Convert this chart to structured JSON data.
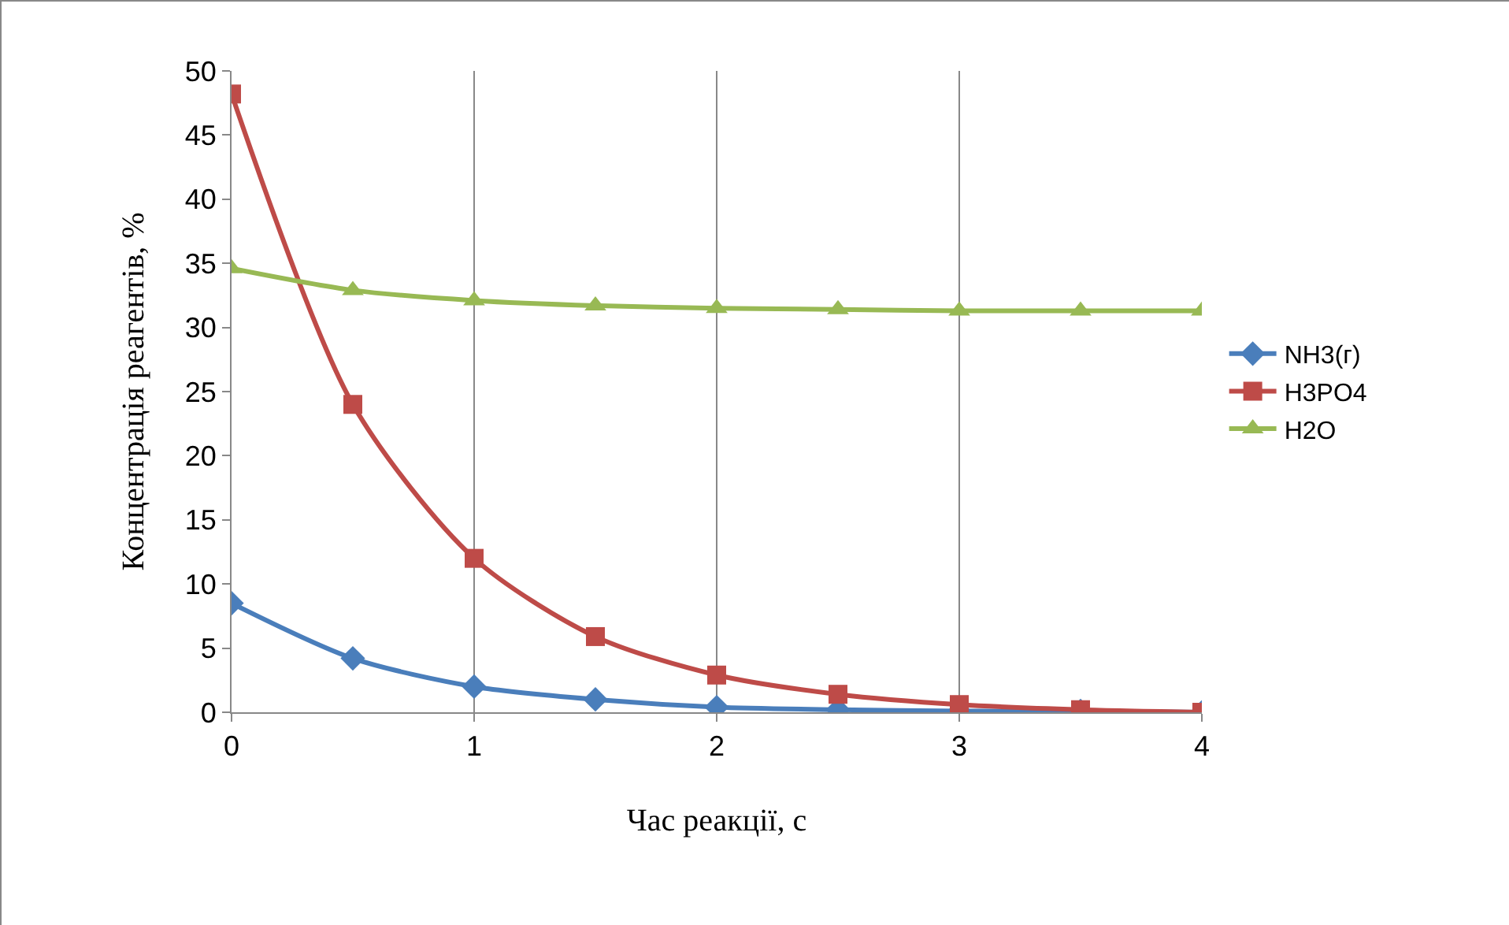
{
  "chart_data": {
    "type": "line",
    "xlabel": "Час реакції, с",
    "ylabel": "Концентрація реагентів, %",
    "x": [
      0,
      0.5,
      1,
      1.5,
      2,
      2.5,
      3,
      3.5,
      4
    ],
    "series": [
      {
        "name": "NH3(г)",
        "color": "#4a7ebb",
        "marker": "diamond",
        "values": [
          8.5,
          4.2,
          2.0,
          1.0,
          0.4,
          0.2,
          0.1,
          0.1,
          0
        ]
      },
      {
        "name": "H3PO4",
        "color": "#be4b48",
        "marker": "square",
        "values": [
          48.2,
          24.0,
          12.0,
          5.9,
          2.9,
          1.4,
          0.6,
          0.2,
          0
        ]
      },
      {
        "name": "H2O",
        "color": "#98b954",
        "marker": "triangle",
        "values": [
          34.6,
          32.9,
          32.1,
          31.7,
          31.5,
          31.4,
          31.3,
          31.3,
          31.3
        ]
      }
    ],
    "xlim": [
      0,
      4
    ],
    "xticks": [
      0,
      1,
      2,
      3,
      4
    ],
    "ylim": [
      0,
      50
    ],
    "yticks": [
      0,
      5,
      10,
      15,
      20,
      25,
      30,
      35,
      40,
      45,
      50
    ],
    "grid": "x",
    "legend": "right"
  }
}
